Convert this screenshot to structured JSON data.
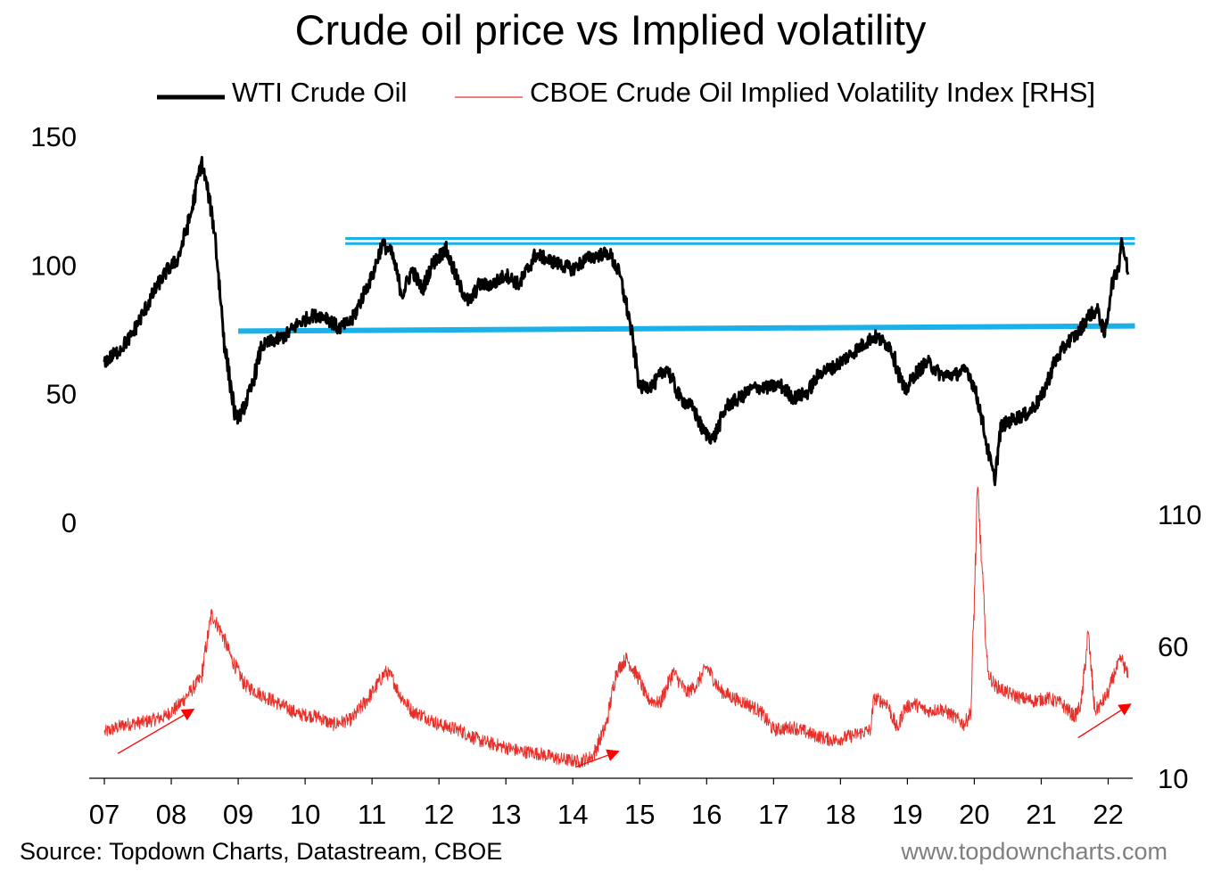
{
  "title": "Crude oil price vs Implied volatility",
  "legend": [
    {
      "label": "WTI Crude Oil",
      "color": "#000000"
    },
    {
      "label": "CBOE Crude Oil Implied Volatility Index [RHS]",
      "color": "#e8302a"
    }
  ],
  "source": "Source: Topdown Charts, Datastream, CBOE",
  "website": "www.topdowncharts.com",
  "colors": {
    "wti": "#000000",
    "ovx": "#e8302a",
    "level_lines": "#1ab0e8",
    "arrows": "#ff0000"
  },
  "chart_data": {
    "type": "line",
    "title": "Crude oil price vs Implied volatility",
    "xlabel": "",
    "x_ticks": [
      "07",
      "08",
      "09",
      "10",
      "11",
      "12",
      "13",
      "14",
      "15",
      "16",
      "17",
      "18",
      "19",
      "20",
      "21",
      "22"
    ],
    "xlim": [
      2007.0,
      2022.3
    ],
    "left_axis": {
      "ylim": [
        0,
        150
      ],
      "ticks": [
        0,
        50,
        100,
        150
      ]
    },
    "right_axis": {
      "ylim": [
        10,
        110
      ],
      "ticks": [
        10,
        60,
        110
      ]
    },
    "series": [
      {
        "name": "WTI Crude Oil",
        "axis": "left",
        "x": [
          2007.0,
          2007.2,
          2007.4,
          2007.6,
          2007.8,
          2007.95,
          2008.1,
          2008.3,
          2008.45,
          2008.55,
          2008.65,
          2008.8,
          2008.96,
          2009.05,
          2009.2,
          2009.35,
          2009.5,
          2009.7,
          2009.9,
          2010.1,
          2010.3,
          2010.5,
          2010.7,
          2010.9,
          2011.0,
          2011.15,
          2011.3,
          2011.45,
          2011.6,
          2011.75,
          2011.9,
          2012.1,
          2012.3,
          2012.45,
          2012.6,
          2012.8,
          2013.0,
          2013.2,
          2013.45,
          2013.6,
          2013.8,
          2014.0,
          2014.2,
          2014.45,
          2014.55,
          2014.7,
          2014.85,
          2015.0,
          2015.2,
          2015.4,
          2015.6,
          2015.8,
          2015.95,
          2016.1,
          2016.3,
          2016.5,
          2016.7,
          2016.9,
          2017.1,
          2017.3,
          2017.5,
          2017.7,
          2017.9,
          2018.1,
          2018.3,
          2018.5,
          2018.75,
          2018.96,
          2019.1,
          2019.3,
          2019.5,
          2019.7,
          2019.9,
          2020.0,
          2020.1,
          2020.2,
          2020.3,
          2020.4,
          2020.6,
          2020.8,
          2021.0,
          2021.2,
          2021.4,
          2021.55,
          2021.7,
          2021.85,
          2021.95,
          2022.05,
          2022.15,
          2022.2,
          2022.3
        ],
        "y": [
          62,
          66,
          72,
          82,
          92,
          98,
          102,
          120,
          140,
          128,
          112,
          68,
          40,
          42,
          52,
          68,
          70,
          72,
          77,
          80,
          80,
          75,
          78,
          90,
          95,
          108,
          104,
          88,
          98,
          90,
          100,
          106,
          92,
          85,
          92,
          92,
          96,
          92,
          104,
          102,
          100,
          98,
          102,
          104,
          104,
          96,
          78,
          52,
          53,
          60,
          48,
          44,
          35,
          32,
          45,
          48,
          52,
          52,
          53,
          48,
          50,
          58,
          60,
          64,
          68,
          72,
          68,
          50,
          57,
          62,
          57,
          57,
          59,
          52,
          42,
          28,
          16,
          37,
          40,
          42,
          48,
          62,
          70,
          73,
          80,
          82,
          72,
          92,
          98,
          110,
          96
        ]
      },
      {
        "name": "CBOE Crude Oil Implied Volatility Index [RHS]",
        "axis": "right",
        "x": [
          2007.0,
          2007.3,
          2007.6,
          2007.9,
          2008.1,
          2008.3,
          2008.45,
          2008.6,
          2008.75,
          2008.9,
          2009.1,
          2009.3,
          2009.6,
          2009.9,
          2010.2,
          2010.4,
          2010.7,
          2011.0,
          2011.2,
          2011.3,
          2011.4,
          2011.6,
          2011.8,
          2012.0,
          2012.3,
          2012.6,
          2012.9,
          2013.2,
          2013.5,
          2013.8,
          2014.1,
          2014.3,
          2014.5,
          2014.65,
          2014.8,
          2015.0,
          2015.1,
          2015.3,
          2015.5,
          2015.7,
          2015.85,
          2016.0,
          2016.2,
          2016.4,
          2016.6,
          2016.8,
          2017.0,
          2017.3,
          2017.6,
          2017.9,
          2018.2,
          2018.45,
          2018.5,
          2018.7,
          2018.85,
          2018.95,
          2019.1,
          2019.3,
          2019.5,
          2019.7,
          2019.85,
          2019.95,
          2020.05,
          2020.15,
          2020.2,
          2020.3,
          2020.5,
          2020.7,
          2020.9,
          2021.1,
          2021.3,
          2021.5,
          2021.6,
          2021.7,
          2021.8,
          2021.9,
          2022.0,
          2022.1,
          2022.2,
          2022.3
        ],
        "y": [
          27,
          30,
          31,
          33,
          37,
          43,
          48,
          72,
          65,
          55,
          45,
          42,
          38,
          34,
          33,
          30,
          32,
          42,
          50,
          48,
          42,
          35,
          33,
          30,
          28,
          24,
          22,
          20,
          19,
          17,
          16,
          18,
          30,
          50,
          55,
          47,
          40,
          38,
          50,
          42,
          45,
          52,
          43,
          40,
          38,
          35,
          28,
          29,
          26,
          24,
          26,
          28,
          40,
          38,
          28,
          36,
          38,
          35,
          36,
          33,
          30,
          35,
          120,
          72,
          50,
          45,
          42,
          40,
          39,
          40,
          38,
          33,
          38,
          65,
          35,
          38,
          42,
          50,
          55,
          48
        ]
      }
    ],
    "level_lines": [
      {
        "x_start": 2010.6,
        "x_end": 2022.4,
        "y_start": 110,
        "y_end": 110,
        "axis": "left"
      },
      {
        "x_start": 2010.6,
        "x_end": 2022.4,
        "y_start": 108,
        "y_end": 108,
        "axis": "left"
      },
      {
        "x_start": 2009.0,
        "x_end": 2022.4,
        "y_start": 74,
        "y_end": 76,
        "axis": "left"
      }
    ],
    "trend_arrows": [
      {
        "x_start": 2007.2,
        "y_start": 19,
        "x_end": 2008.35,
        "y_end": 36,
        "axis": "right"
      },
      {
        "x_start": 2014.05,
        "y_start": 14,
        "x_end": 2014.7,
        "y_end": 20,
        "axis": "right"
      },
      {
        "x_start": 2021.55,
        "y_start": 25,
        "x_end": 2022.35,
        "y_end": 38,
        "axis": "right"
      }
    ]
  }
}
